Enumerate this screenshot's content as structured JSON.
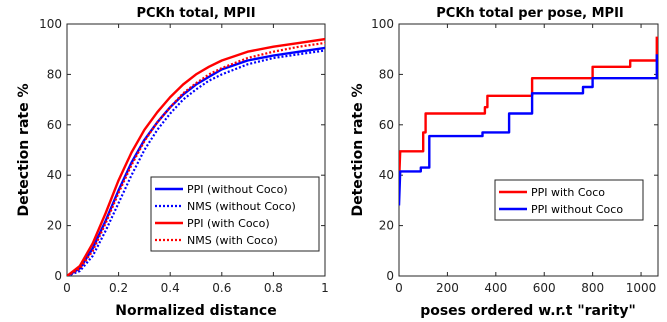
{
  "chart_data": [
    {
      "type": "line",
      "title": "PCKh total, MPII",
      "xlabel": "Normalized distance",
      "ylabel": "Detection rate %",
      "xlim": [
        0,
        1
      ],
      "ylim": [
        0,
        100
      ],
      "xticks": [
        "0",
        "0.2",
        "0.4",
        "0.6",
        "0.8",
        "1"
      ],
      "yticks": [
        "0",
        "20",
        "40",
        "60",
        "80",
        "100"
      ],
      "grid": false,
      "legend_position": "bottom-right",
      "x": [
        0,
        0.05,
        0.1,
        0.15,
        0.2,
        0.25,
        0.3,
        0.35,
        0.4,
        0.45,
        0.5,
        0.55,
        0.6,
        0.7,
        0.8,
        0.9,
        1.0
      ],
      "series": [
        {
          "name": "PPI (without Coco)",
          "color": "#0000ff",
          "style": "solid",
          "values": [
            0,
            3,
            11,
            22,
            34,
            45,
            54,
            61,
            67,
            72,
            76,
            79,
            82,
            85.5,
            87.5,
            89,
            90.5
          ]
        },
        {
          "name": "NMS (without Coco)",
          "color": "#0000ff",
          "style": "dotted",
          "values": [
            0,
            2,
            8,
            18,
            29,
            40,
            50,
            58,
            64.5,
            70,
            74,
            77.5,
            80,
            84,
            86.5,
            88,
            89.5
          ]
        },
        {
          "name": "PPI (with Coco)",
          "color": "#ff0000",
          "style": "solid",
          "values": [
            0,
            4,
            13,
            25,
            38,
            49,
            58,
            65,
            71,
            76,
            80,
            83,
            85.5,
            89,
            91,
            92.5,
            94
          ]
        },
        {
          "name": "NMS (with Coco)",
          "color": "#ff0000",
          "style": "dotted",
          "values": [
            0,
            3,
            10,
            21,
            33,
            44,
            53.5,
            61,
            67,
            72.5,
            76.5,
            80,
            82.5,
            86.5,
            89,
            91,
            92.5
          ]
        }
      ]
    },
    {
      "type": "line",
      "title": "PCKh total per pose, MPII",
      "xlabel": "poses ordered w.r.t \"rarity\"",
      "ylabel": "Detection rate %",
      "xlim": [
        0,
        1070
      ],
      "ylim": [
        0,
        100
      ],
      "xticks": [
        "0",
        "200",
        "400",
        "600",
        "800",
        "1000"
      ],
      "xtick_values": [
        0,
        200,
        400,
        600,
        800,
        1000
      ],
      "yticks": [
        "0",
        "20",
        "40",
        "60",
        "80",
        "100"
      ],
      "grid": false,
      "legend_position": "center-right",
      "series": [
        {
          "name": "PPI with Coco",
          "color": "#ff0000",
          "style": "step",
          "points": [
            [
              0,
              37
            ],
            [
              5,
              49.5
            ],
            [
              100,
              49.5
            ],
            [
              100,
              57
            ],
            [
              110,
              57
            ],
            [
              110,
              64.5
            ],
            [
              355,
              64.5
            ],
            [
              355,
              67
            ],
            [
              365,
              67
            ],
            [
              365,
              71.5
            ],
            [
              550,
              71.5
            ],
            [
              550,
              78.5
            ],
            [
              800,
              78.5
            ],
            [
              800,
              83
            ],
            [
              955,
              83
            ],
            [
              955,
              85.5
            ],
            [
              1065,
              85.5
            ],
            [
              1065,
              95
            ]
          ]
        },
        {
          "name": "PPI without Coco",
          "color": "#0000ff",
          "style": "step",
          "points": [
            [
              0,
              28
            ],
            [
              5,
              41.5
            ],
            [
              90,
              41.5
            ],
            [
              90,
              43
            ],
            [
              125,
              43
            ],
            [
              125,
              55.5
            ],
            [
              345,
              55.5
            ],
            [
              345,
              57
            ],
            [
              455,
              57
            ],
            [
              455,
              64.5
            ],
            [
              550,
              64.5
            ],
            [
              550,
              72.5
            ],
            [
              760,
              72.5
            ],
            [
              760,
              75
            ],
            [
              800,
              75
            ],
            [
              800,
              78.5
            ],
            [
              1065,
              78.5
            ],
            [
              1065,
              88
            ]
          ]
        }
      ]
    }
  ]
}
